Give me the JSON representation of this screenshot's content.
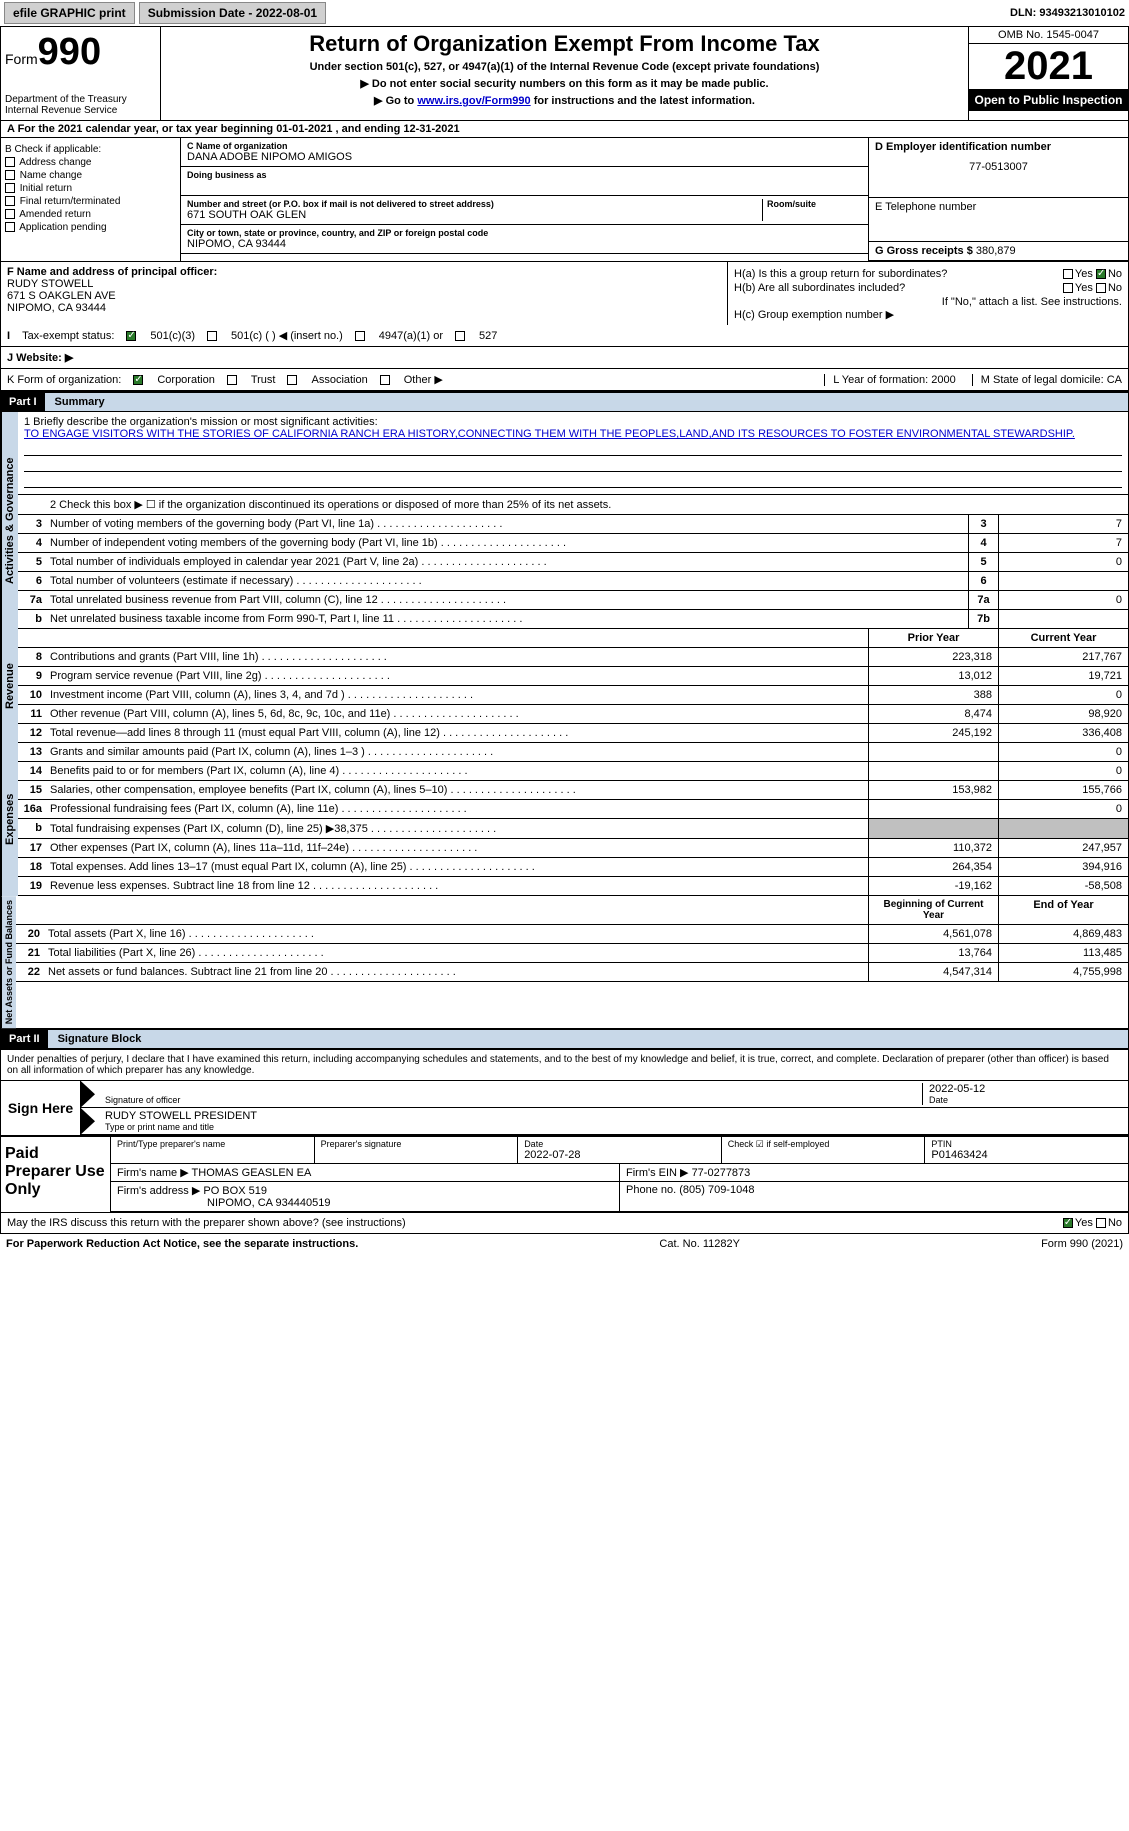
{
  "topbar": {
    "efile": "efile GRAPHIC print",
    "submission": "Submission Date - 2022-08-01",
    "dln": "DLN: 93493213010102"
  },
  "header": {
    "form": "Form",
    "num": "990",
    "dept": "Department of the Treasury\nInternal Revenue Service",
    "title": "Return of Organization Exempt From Income Tax",
    "sub1": "Under section 501(c), 527, or 4947(a)(1) of the Internal Revenue Code (except private foundations)",
    "sub2": "▶ Do not enter social security numbers on this form as it may be made public.",
    "sub3_pre": "▶ Go to ",
    "sub3_link": "www.irs.gov/Form990",
    "sub3_post": " for instructions and the latest information.",
    "omb": "OMB No. 1545-0047",
    "year": "2021",
    "inspect": "Open to Public Inspection"
  },
  "lineA": "A For the 2021 calendar year, or tax year beginning 01-01-2021   , and ending 12-31-2021",
  "colB": {
    "label": "B Check if applicable:",
    "opts": [
      "Address change",
      "Name change",
      "Initial return",
      "Final return/terminated",
      "Amended return",
      "Application pending"
    ]
  },
  "colC": {
    "name_lbl": "C Name of organization",
    "name": "DANA ADOBE NIPOMO AMIGOS",
    "dba_lbl": "Doing business as",
    "addr_lbl": "Number and street (or P.O. box if mail is not delivered to street address)",
    "room_lbl": "Room/suite",
    "addr": "671 SOUTH OAK GLEN",
    "city_lbl": "City or town, state or province, country, and ZIP or foreign postal code",
    "city": "NIPOMO, CA  93444"
  },
  "colD": {
    "ein_lbl": "D Employer identification number",
    "ein": "77-0513007",
    "tel_lbl": "E Telephone number",
    "gross_lbl": "G Gross receipts $",
    "gross": "380,879"
  },
  "f": {
    "lbl": "F  Name and address of principal officer:",
    "name": "RUDY STOWELL",
    "addr1": "671 S OAKGLEN AVE",
    "addr2": "NIPOMO, CA  93444"
  },
  "h": {
    "a": "H(a)  Is this a group return for subordinates?",
    "b": "H(b)  Are all subordinates included?",
    "bnote": "If \"No,\" attach a list. See instructions.",
    "c": "H(c)  Group exemption number ▶",
    "yes": "Yes",
    "no": "No"
  },
  "i": {
    "lbl": "Tax-exempt status:",
    "c3": "501(c)(3)",
    "c": "501(c) (  ) ◀ (insert no.)",
    "a1": "4947(a)(1) or",
    "s527": "527"
  },
  "j": {
    "lbl": "J   Website: ▶"
  },
  "k": {
    "lbl": "K Form of organization:",
    "corp": "Corporation",
    "trust": "Trust",
    "assoc": "Association",
    "other": "Other ▶",
    "l_lbl": "L Year of formation:",
    "l_val": "2000",
    "m_lbl": "M State of legal domicile:",
    "m_val": "CA"
  },
  "part1": {
    "hdr": "Part I",
    "title": "Summary"
  },
  "mission": {
    "lbl": "1  Briefly describe the organization's mission or most significant activities:",
    "text": "TO ENGAGE VISITORS WITH THE STORIES OF CALIFORNIA RANCH ERA HISTORY,CONNECTING THEM WITH THE PEOPLES,LAND,AND ITS RESOURCES TO FOSTER ENVIRONMENTAL STEWARDSHIP."
  },
  "line2": "2   Check this box ▶ ☐  if the organization discontinued its operations or disposed of more than 25% of its net assets.",
  "tabs": {
    "ag": "Activities & Governance",
    "rev": "Revenue",
    "exp": "Expenses",
    "net": "Net Assets or Fund Balances"
  },
  "rows_ag": [
    {
      "n": "3",
      "t": "Number of voting members of the governing body (Part VI, line 1a)",
      "c": "3",
      "v": "7"
    },
    {
      "n": "4",
      "t": "Number of independent voting members of the governing body (Part VI, line 1b)",
      "c": "4",
      "v": "7"
    },
    {
      "n": "5",
      "t": "Total number of individuals employed in calendar year 2021 (Part V, line 2a)",
      "c": "5",
      "v": "0"
    },
    {
      "n": "6",
      "t": "Total number of volunteers (estimate if necessary)",
      "c": "6",
      "v": ""
    },
    {
      "n": "7a",
      "t": "Total unrelated business revenue from Part VIII, column (C), line 12",
      "c": "7a",
      "v": "0"
    },
    {
      "n": "b",
      "t": "Net unrelated business taxable income from Form 990-T, Part I, line 11",
      "c": "7b",
      "v": ""
    }
  ],
  "hdr_cols": {
    "prior": "Prior Year",
    "curr": "Current Year",
    "beg": "Beginning of Current Year",
    "end": "End of Year"
  },
  "rows_rev": [
    {
      "n": "8",
      "t": "Contributions and grants (Part VIII, line 1h)",
      "p": "223,318",
      "c": "217,767"
    },
    {
      "n": "9",
      "t": "Program service revenue (Part VIII, line 2g)",
      "p": "13,012",
      "c": "19,721"
    },
    {
      "n": "10",
      "t": "Investment income (Part VIII, column (A), lines 3, 4, and 7d )",
      "p": "388",
      "c": "0"
    },
    {
      "n": "11",
      "t": "Other revenue (Part VIII, column (A), lines 5, 6d, 8c, 9c, 10c, and 11e)",
      "p": "8,474",
      "c": "98,920"
    },
    {
      "n": "12",
      "t": "Total revenue—add lines 8 through 11 (must equal Part VIII, column (A), line 12)",
      "p": "245,192",
      "c": "336,408"
    }
  ],
  "rows_exp": [
    {
      "n": "13",
      "t": "Grants and similar amounts paid (Part IX, column (A), lines 1–3 )",
      "p": "",
      "c": "0"
    },
    {
      "n": "14",
      "t": "Benefits paid to or for members (Part IX, column (A), line 4)",
      "p": "",
      "c": "0"
    },
    {
      "n": "15",
      "t": "Salaries, other compensation, employee benefits (Part IX, column (A), lines 5–10)",
      "p": "153,982",
      "c": "155,766"
    },
    {
      "n": "16a",
      "t": "Professional fundraising fees (Part IX, column (A), line 11e)",
      "p": "",
      "c": "0"
    },
    {
      "n": "b",
      "t": "Total fundraising expenses (Part IX, column (D), line 25) ▶38,375",
      "p": "grey",
      "c": "grey"
    },
    {
      "n": "17",
      "t": "Other expenses (Part IX, column (A), lines 11a–11d, 11f–24e)",
      "p": "110,372",
      "c": "247,957"
    },
    {
      "n": "18",
      "t": "Total expenses. Add lines 13–17 (must equal Part IX, column (A), line 25)",
      "p": "264,354",
      "c": "394,916"
    },
    {
      "n": "19",
      "t": "Revenue less expenses. Subtract line 18 from line 12",
      "p": "-19,162",
      "c": "-58,508"
    }
  ],
  "rows_net": [
    {
      "n": "20",
      "t": "Total assets (Part X, line 16)",
      "p": "4,561,078",
      "c": "4,869,483"
    },
    {
      "n": "21",
      "t": "Total liabilities (Part X, line 26)",
      "p": "13,764",
      "c": "113,485"
    },
    {
      "n": "22",
      "t": "Net assets or fund balances. Subtract line 21 from line 20",
      "p": "4,547,314",
      "c": "4,755,998"
    }
  ],
  "part2": {
    "hdr": "Part II",
    "title": "Signature Block"
  },
  "sig": {
    "decl": "Under penalties of perjury, I declare that I have examined this return, including accompanying schedules and statements, and to the best of my knowledge and belief, it is true, correct, and complete. Declaration of preparer (other than officer) is based on all information of which preparer has any knowledge.",
    "here": "Sign Here",
    "off_lbl": "Signature of officer",
    "date": "2022-05-12",
    "date_lbl": "Date",
    "name": "RUDY STOWELL  PRESIDENT",
    "name_lbl": "Type or print name and title"
  },
  "prep": {
    "lbl": "Paid Preparer Use Only",
    "pname_lbl": "Print/Type preparer's name",
    "psig_lbl": "Preparer's signature",
    "pdate_lbl": "Date",
    "pdate": "2022-07-28",
    "self_lbl": "Check ☑ if self-employed",
    "ptin_lbl": "PTIN",
    "ptin": "P01463424",
    "firm_lbl": "Firm's name    ▶",
    "firm": "THOMAS GEASLEN EA",
    "fein_lbl": "Firm's EIN ▶",
    "fein": "77-0277873",
    "faddr_lbl": "Firm's address ▶",
    "faddr1": "PO BOX 519",
    "faddr2": "NIPOMO, CA  934440519",
    "phone_lbl": "Phone no.",
    "phone": "(805) 709-1048"
  },
  "discuss": "May the IRS discuss this return with the preparer shown above? (see instructions)",
  "foot": {
    "l": "For Paperwork Reduction Act Notice, see the separate instructions.",
    "c": "Cat. No. 11282Y",
    "r": "Form 990 (2021)"
  }
}
